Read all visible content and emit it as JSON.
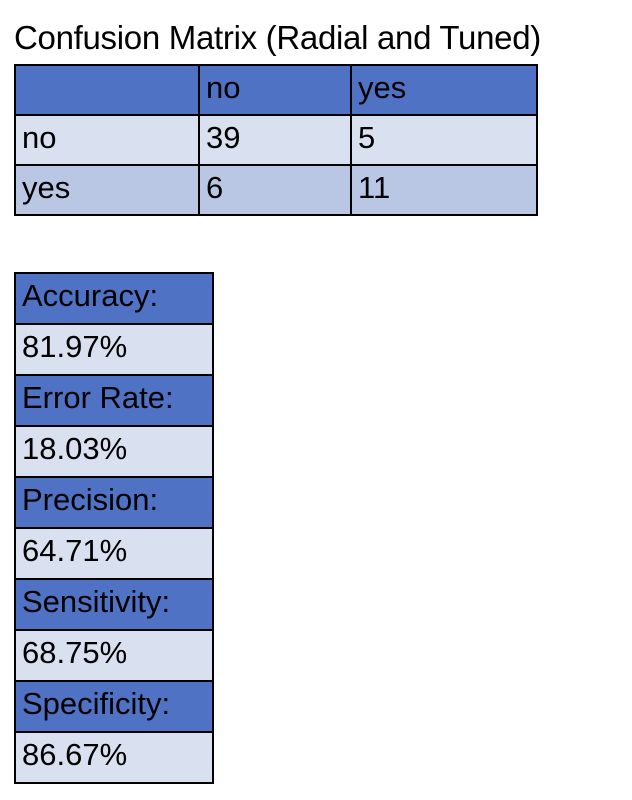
{
  "title": "Confusion Matrix (Radial and Tuned)",
  "matrix": {
    "header": [
      "",
      "no",
      "yes"
    ],
    "rows": [
      [
        "no",
        "39",
        "5"
      ],
      [
        "yes",
        "6",
        "11"
      ]
    ]
  },
  "metrics": [
    {
      "label": "Accuracy:",
      "value": "81.97%"
    },
    {
      "label": "Error Rate:",
      "value": "18.03%"
    },
    {
      "label": "Precision:",
      "value": "64.71%"
    },
    {
      "label": "Sensitivity:",
      "value": "68.75%"
    },
    {
      "label": "Specificity:",
      "value": "86.67%"
    }
  ],
  "colors": {
    "header_blue": "#4f72c4",
    "row_light": "#d9e0ef",
    "row_medium": "#b9c7e4"
  }
}
